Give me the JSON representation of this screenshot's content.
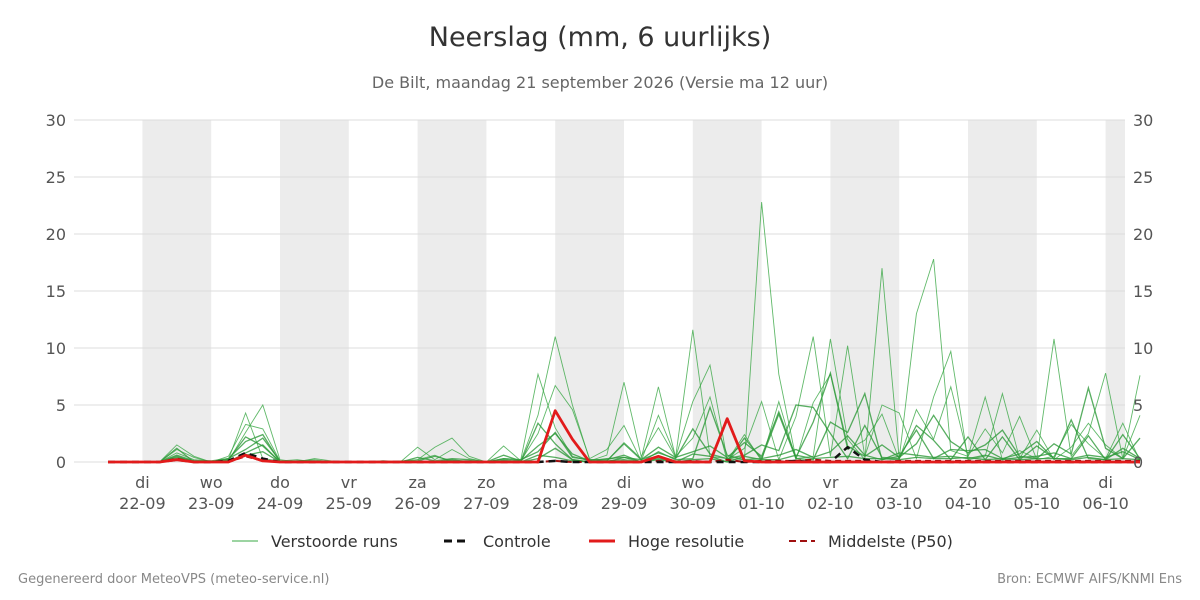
{
  "title": "Neerslag (mm, 6 uurlijks)",
  "subtitle": "De Bilt, maandag 21 september 2026 (Versie ma 12 uur)",
  "footer": {
    "left": "Gegenereerd door MeteoVPS (meteo-service.nl)",
    "right": "Bron: ECMWF AIFS/KNMI Ens"
  },
  "colors": {
    "ensemble": "#3aa845",
    "ensemble_band": "#2e9a3a",
    "control": "#111111",
    "high_res": "#e21b1b",
    "median": "#a01010",
    "weekend_shade": "#ececec",
    "grid": "#dddddd"
  },
  "chart_data": {
    "type": "line",
    "x_unit": "6-hourly steps starting 21-09 12:00",
    "y_axis": {
      "ylim": [
        0,
        30
      ],
      "ticks": [
        0,
        5,
        10,
        15,
        20,
        25,
        30
      ],
      "both_sides": true
    },
    "x_axis": {
      "day_ticks": [
        {
          "day": "di",
          "date": "22-09",
          "step": 2
        },
        {
          "day": "wo",
          "date": "23-09",
          "step": 6
        },
        {
          "day": "do",
          "date": "24-09",
          "step": 10
        },
        {
          "day": "vr",
          "date": "25-09",
          "step": 14
        },
        {
          "day": "za",
          "date": "26-09",
          "step": 18
        },
        {
          "day": "zo",
          "date": "27-09",
          "step": 22
        },
        {
          "day": "ma",
          "date": "28-09",
          "step": 26
        },
        {
          "day": "di",
          "date": "29-09",
          "step": 30
        },
        {
          "day": "wo",
          "date": "30-09",
          "step": 34
        },
        {
          "day": "do",
          "date": "01-10",
          "step": 38
        },
        {
          "day": "vr",
          "date": "02-10",
          "step": 42
        },
        {
          "day": "za",
          "date": "03-10",
          "step": 46
        },
        {
          "day": "zo",
          "date": "04-10",
          "step": 50
        },
        {
          "day": "ma",
          "date": "05-10",
          "step": 54
        },
        {
          "day": "di",
          "date": "06-10",
          "step": 58
        }
      ],
      "shaded_days": [
        {
          "from": 2,
          "to": 6
        },
        {
          "from": 10,
          "to": 14
        },
        {
          "from": 18,
          "to": 22
        },
        {
          "from": 26,
          "to": 30
        },
        {
          "from": 34,
          "to": 38
        },
        {
          "from": 42,
          "to": 46
        },
        {
          "from": 50,
          "to": 54
        },
        {
          "from": 58,
          "to": 62
        }
      ],
      "xlim": [
        0,
        60
      ]
    },
    "legend": {
      "placement": "bottom-center",
      "entries": [
        {
          "key": "ensemble",
          "label": "Verstoorde runs"
        },
        {
          "key": "control",
          "label": "Controle"
        },
        {
          "key": "high_res",
          "label": "Hoge resolutie"
        },
        {
          "key": "median",
          "label": "Middelste (P50)"
        }
      ]
    },
    "series": [
      {
        "name": "Verstoorde runs",
        "role": "ensemble",
        "members": [
          [
            0,
            0,
            0,
            0,
            1.5,
            0.5,
            0,
            0.2,
            4.3,
            0.3,
            0.1,
            0.1,
            0.2,
            0,
            0,
            0,
            0,
            0,
            0.2,
            0.6,
            0,
            0,
            0,
            0,
            0.2,
            7.7,
            3,
            0.5,
            0.1,
            0.6,
            7,
            0.5,
            3,
            0.4,
            11.6,
            0.5,
            0.3,
            0.2,
            22.8,
            7.7,
            0.3,
            0.5,
            10.8,
            2,
            0.2,
            17,
            0.3,
            13,
            17.8,
            1,
            0.5,
            5.7,
            0.2,
            1,
            0.3,
            10.8,
            0.5,
            2.5,
            7.8,
            0.3,
            7.6
          ],
          [
            0,
            0,
            0,
            0,
            0.8,
            0.2,
            0.1,
            0.1,
            2.6,
            5,
            0.2,
            0,
            0.3,
            0.1,
            0,
            0,
            0,
            0,
            1.3,
            0.2,
            1.1,
            0.3,
            0,
            1.4,
            0.1,
            4.1,
            11,
            5,
            0.2,
            0.1,
            1.7,
            0.3,
            6.6,
            0.4,
            5.3,
            8.5,
            0.2,
            1.2,
            5.3,
            0.2,
            4,
            11,
            0.5,
            10.2,
            0.5,
            5,
            4.3,
            0.3,
            5.7,
            9.7,
            0.2,
            0.5,
            6,
            0.3,
            2.8,
            0.2,
            1.3,
            3.4,
            1.5,
            0.3,
            4.1
          ],
          [
            0,
            0,
            0,
            0,
            1.1,
            0.4,
            0,
            0.5,
            3.3,
            2.9,
            0.1,
            0.2,
            0,
            0,
            0,
            0,
            0,
            0.1,
            0.2,
            1.3,
            2.1,
            0.5,
            0,
            0.3,
            0.1,
            2.5,
            6.7,
            4.6,
            0.3,
            1.1,
            3.2,
            0.1,
            4.1,
            0.5,
            2.1,
            5.7,
            0.1,
            2.4,
            0.1,
            5.3,
            0.2,
            5.2,
            7.7,
            1.1,
            1.9,
            4.2,
            0.2,
            4.6,
            2,
            6.6,
            0.5,
            2.9,
            0.8,
            4,
            0.2,
            0.5,
            3.3,
            1.6,
            0.3,
            3.4,
            0.1
          ],
          [
            0,
            0,
            0,
            0,
            0.3,
            0.1,
            0,
            0.2,
            2.2,
            1.4,
            0,
            0.1,
            0.1,
            0,
            0,
            0,
            0.1,
            0,
            0.4,
            0.1,
            0.3,
            0.2,
            0,
            0.6,
            0.1,
            1.4,
            2.5,
            0.7,
            0.1,
            0.3,
            0.4,
            0.2,
            1.3,
            0.4,
            0.9,
            1.4,
            0.4,
            1.7,
            0.5,
            4.4,
            0.4,
            3.5,
            7.8,
            1.4,
            0.5,
            1.5,
            0.4,
            1.6,
            4.1,
            1.8,
            0.8,
            1.5,
            2.8,
            0.5,
            0.3,
            1.6,
            0.7,
            6.5,
            1.2,
            0.3,
            2.1
          ],
          [
            0,
            0,
            0,
            0,
            1.2,
            0,
            0,
            0.3,
            1.8,
            2.4,
            0,
            0,
            0,
            0,
            0,
            0,
            0,
            0,
            0.1,
            0.5,
            0.1,
            0.1,
            0,
            0.2,
            0,
            3.4,
            1.6,
            0.2,
            0,
            0.1,
            1.6,
            0.2,
            0.8,
            0.3,
            2.9,
            0.7,
            0.3,
            0.6,
            1.5,
            1,
            5,
            4.8,
            2.5,
            0.3,
            3.2,
            0.4,
            0.3,
            3.2,
            1.9,
            0.2,
            2.2,
            0.2,
            2.2,
            0.2,
            1.4,
            0.3,
            0.3,
            2.3,
            0.2,
            2.4,
            0.3
          ],
          [
            0,
            0,
            0,
            0,
            0.6,
            0.1,
            0.1,
            0.3,
            1.1,
            2.1,
            0.1,
            0,
            0,
            0,
            0,
            0,
            0,
            0,
            0,
            0,
            0.2,
            0,
            0,
            0.3,
            0.2,
            0.9,
            2.6,
            0.4,
            0.2,
            0.2,
            0.6,
            0,
            0.9,
            0.2,
            0.3,
            4.8,
            0.6,
            0.2,
            0.3,
            4.2,
            0.3,
            0.2,
            3.5,
            2.6,
            6,
            0.2,
            0.5,
            2.8,
            0.3,
            1.1,
            1,
            1.1,
            0.3,
            0.7,
            1.8,
            0.3,
            3.7,
            0.3,
            0.2,
            1.2,
            0.3
          ],
          [
            0,
            0,
            0,
            0,
            0.5,
            0,
            0,
            0,
            0.8,
            1.5,
            0,
            0,
            0,
            0,
            0,
            0,
            0,
            0,
            0,
            0,
            0,
            0,
            0,
            0.1,
            0,
            0.3,
            1.2,
            0.2,
            0,
            0.1,
            0.2,
            0,
            0.3,
            0,
            0.7,
            0.5,
            0,
            2.1,
            0.3,
            0.6,
            1.1,
            0.4,
            0.9,
            2.3,
            0.6,
            0.2,
            0.8,
            0.6,
            0.4,
            0.5,
            0.3,
            0.6,
            0.2,
            0.4,
            0.5,
            0.8,
            0.3,
            0.6,
            0.4,
            0.9,
            0.2
          ],
          [
            0,
            0,
            0,
            0,
            0.4,
            0.1,
            0,
            0.1,
            0.6,
            0.9,
            0,
            0,
            0,
            0,
            0,
            0,
            0,
            0,
            0,
            0,
            0,
            0,
            0,
            0,
            0,
            0.6,
            0.4,
            0.1,
            0,
            0,
            0.4,
            0,
            0.2,
            0,
            0.2,
            0.3,
            0,
            0.5,
            0.2,
            0.2,
            0.6,
            0.3,
            0.4,
            0.5,
            0.3,
            0.3,
            0.2,
            0.4,
            0.3,
            0.3,
            0.4,
            0.2,
            0.3,
            0.2,
            0.3,
            0.3,
            0.2,
            0.4,
            0.2,
            0.3,
            0.2
          ]
        ]
      },
      {
        "name": "Controle",
        "role": "control",
        "values": [
          0,
          0,
          0,
          0,
          0.2,
          0,
          0,
          0.1,
          0.8,
          0.3,
          0,
          0,
          0,
          0,
          0,
          0,
          0,
          0,
          0,
          0,
          0,
          0,
          0,
          0,
          0,
          0,
          0.1,
          0,
          0,
          0,
          0,
          0,
          0,
          0,
          0,
          0,
          0,
          0,
          0,
          0,
          0.1,
          0,
          0,
          1.3,
          0.2,
          0,
          0,
          0,
          0,
          0,
          0,
          0,
          0,
          0,
          0,
          0,
          0,
          0,
          0,
          0,
          0
        ]
      },
      {
        "name": "Hoge resolutie",
        "role": "high_res",
        "values": [
          0,
          0,
          0,
          0,
          0.2,
          0,
          0,
          0,
          0.6,
          0.1,
          0,
          0,
          0,
          0,
          0,
          0,
          0,
          0,
          0,
          0,
          0,
          0,
          0,
          0,
          0,
          0,
          4.5,
          2,
          0,
          0,
          0,
          0,
          0.5,
          0,
          0,
          0,
          3.8,
          0.1,
          0,
          0,
          0,
          0,
          0,
          0,
          0,
          0,
          0,
          0,
          0,
          0,
          0,
          0,
          0,
          0,
          0,
          0,
          0,
          0,
          0,
          0,
          0
        ]
      },
      {
        "name": "Middelste (P50)",
        "role": "median",
        "values": [
          0,
          0,
          0,
          0,
          0.3,
          0,
          0,
          0,
          0.5,
          0.1,
          0,
          0,
          0,
          0,
          0,
          0,
          0,
          0,
          0,
          0,
          0,
          0,
          0,
          0,
          0,
          0,
          0.1,
          0,
          0,
          0,
          0,
          0,
          0.1,
          0,
          0.1,
          0,
          0.2,
          0,
          0.1,
          0.1,
          0.1,
          0.2,
          0.1,
          0.1,
          0.1,
          0,
          0.1,
          0.1,
          0.1,
          0.1,
          0.1,
          0.1,
          0.1,
          0.1,
          0.1,
          0.1,
          0.1,
          0.1,
          0.1,
          0.1,
          0.1
        ]
      }
    ]
  }
}
